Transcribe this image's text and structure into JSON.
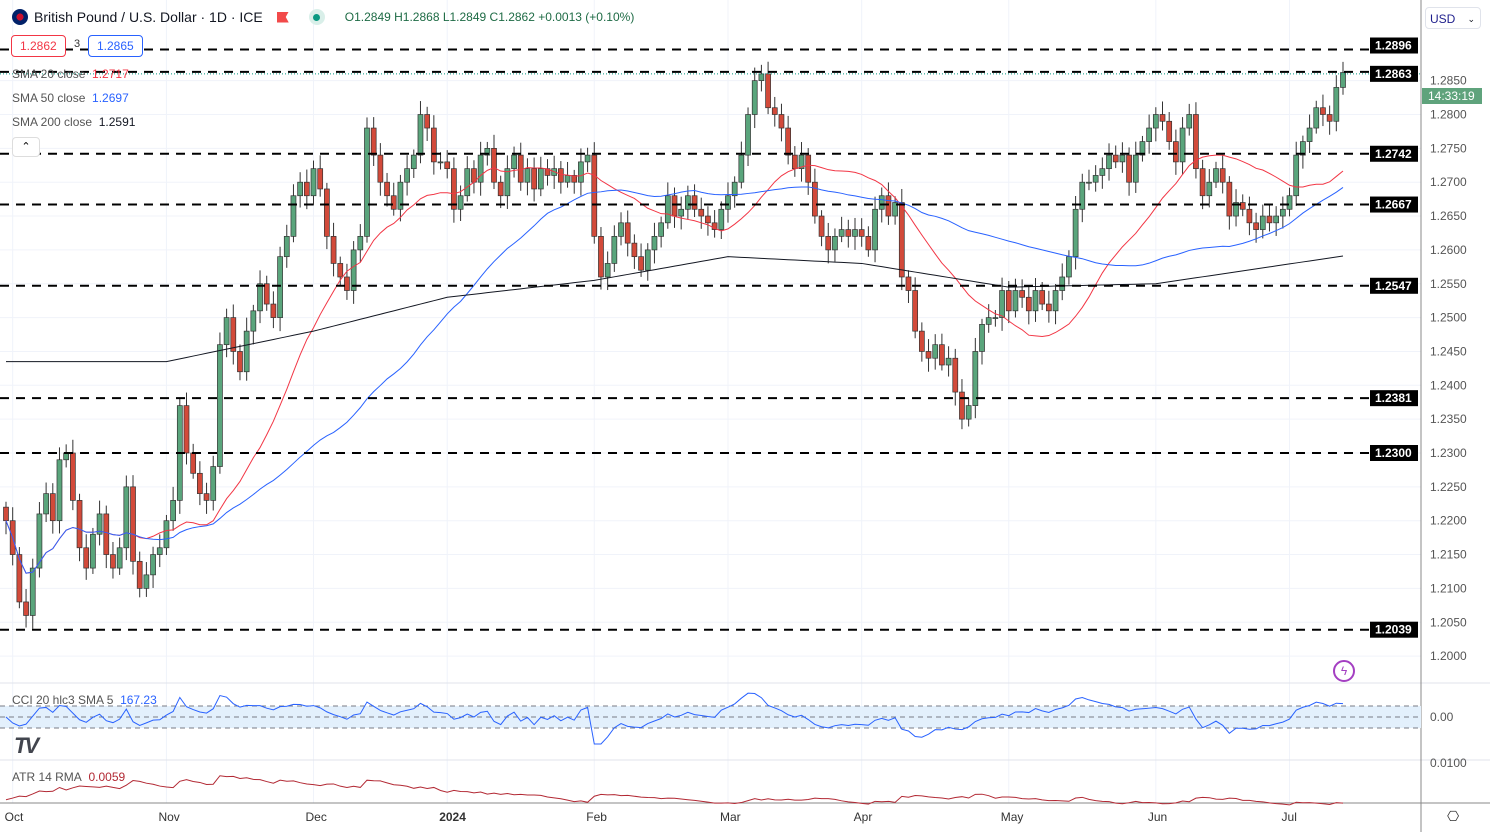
{
  "header": {
    "symbol_title": "British Pound / U.S. Dollar · 1D · ICE",
    "ohlc": "O1.2849 H1.2868 L1.2849 C1.2862 +0.0013 (+0.10%)",
    "sell_price": "1.2862",
    "spread": "3",
    "buy_price": "1.2865",
    "currency": "USD",
    "collapse_icon": "chevron-up-icon"
  },
  "indicators": {
    "sma20": {
      "label": "SMA 20 close",
      "value": "1.2717",
      "color": "#f23645"
    },
    "sma50": {
      "label": "SMA 50 close",
      "value": "1.2697",
      "color": "#2962ff"
    },
    "sma200": {
      "label": "SMA 200 close",
      "value": "1.2591",
      "color": "#131722"
    },
    "cci": {
      "label": "CCI 20 hlc3 SMA 5",
      "value": "167.23",
      "color": "#2962ff"
    },
    "atr": {
      "label": "ATR 14 RMA",
      "value": "0.0059",
      "color": "#b22833"
    }
  },
  "axis": {
    "price_ticks": [
      "1.2850",
      "1.2800",
      "1.2750",
      "1.2700",
      "1.2650",
      "1.2600",
      "1.2550",
      "1.2500",
      "1.2450",
      "1.2400",
      "1.2350",
      "1.2300",
      "1.2250",
      "1.2200",
      "1.2150",
      "1.2100",
      "1.2050",
      "1.2000"
    ],
    "cci_tick": "0.00",
    "atr_tick": "0.0100",
    "time_labels": [
      {
        "label": "Oct",
        "index": 1
      },
      {
        "label": "Nov",
        "index": 24
      },
      {
        "label": "Dec",
        "index": 46
      },
      {
        "label": "2024",
        "index": 66
      },
      {
        "label": "Feb",
        "index": 88
      },
      {
        "label": "Mar",
        "index": 108
      },
      {
        "label": "Apr",
        "index": 128
      },
      {
        "label": "May",
        "index": 150
      },
      {
        "label": "Jun",
        "index": 172
      },
      {
        "label": "Jul",
        "index": 192
      }
    ],
    "current_time": "14:33:19"
  },
  "levels": [
    "1.2896",
    "1.2863",
    "1.2742",
    "1.2667",
    "1.2547",
    "1.2381",
    "1.2300",
    "1.2039"
  ],
  "chart_data": {
    "type": "candlestick",
    "ylim": [
      1.196,
      1.292
    ],
    "closes": [
      1.22,
      1.215,
      1.208,
      1.206,
      1.213,
      1.221,
      1.224,
      1.22,
      1.229,
      1.23,
      1.223,
      1.216,
      1.213,
      1.218,
      1.221,
      1.215,
      1.213,
      1.216,
      1.225,
      1.214,
      1.21,
      1.212,
      1.215,
      1.216,
      1.22,
      1.223,
      1.237,
      1.23,
      1.227,
      1.224,
      1.223,
      1.228,
      1.246,
      1.25,
      1.245,
      1.242,
      1.248,
      1.251,
      1.255,
      1.252,
      1.25,
      1.259,
      1.262,
      1.268,
      1.27,
      1.268,
      1.272,
      1.269,
      1.262,
      1.258,
      1.256,
      1.254,
      1.26,
      1.262,
      1.278,
      1.274,
      1.27,
      1.268,
      1.266,
      1.27,
      1.272,
      1.274,
      1.28,
      1.278,
      1.273,
      1.273,
      1.272,
      1.266,
      1.268,
      1.272,
      1.27,
      1.274,
      1.275,
      1.27,
      1.268,
      1.272,
      1.274,
      1.27,
      1.272,
      1.269,
      1.272,
      1.271,
      1.272,
      1.27,
      1.271,
      1.27,
      1.273,
      1.274,
      1.262,
      1.256,
      1.258,
      1.262,
      1.264,
      1.261,
      1.259,
      1.257,
      1.26,
      1.262,
      1.264,
      1.268,
      1.265,
      1.266,
      1.268,
      1.266,
      1.265,
      1.264,
      1.263,
      1.266,
      1.268,
      1.27,
      1.274,
      1.28,
      1.285,
      1.286,
      1.281,
      1.28,
      1.278,
      1.274,
      1.272,
      1.274,
      1.27,
      1.265,
      1.262,
      1.26,
      1.262,
      1.263,
      1.262,
      1.263,
      1.262,
      1.26,
      1.266,
      1.268,
      1.265,
      1.267,
      1.256,
      1.254,
      1.248,
      1.245,
      1.244,
      1.246,
      1.243,
      1.244,
      1.239,
      1.235,
      1.237,
      1.245,
      1.249,
      1.25,
      1.25,
      1.254,
      1.251,
      1.254,
      1.253,
      1.251,
      1.254,
      1.252,
      1.251,
      1.254,
      1.256,
      1.259,
      1.266,
      1.27,
      1.27,
      1.271,
      1.272,
      1.274,
      1.273,
      1.274,
      1.27,
      1.274,
      1.276,
      1.278,
      1.28,
      1.279,
      1.276,
      1.273,
      1.278,
      1.28,
      1.272,
      1.268,
      1.27,
      1.272,
      1.27,
      1.265,
      1.267,
      1.266,
      1.264,
      1.263,
      1.265,
      1.264,
      1.265,
      1.266,
      1.268,
      1.274,
      1.276,
      1.278,
      1.281,
      1.28,
      1.279,
      1.284,
      1.2862
    ],
    "sma200_monthly": [
      1.2435,
      1.2435,
      1.248,
      1.253,
      1.2555,
      1.259,
      1.258,
      1.2545,
      1.255,
      1.2591
    ],
    "colors": {
      "up": "#5aa57c",
      "down": "#d24a3a",
      "level": "#000000",
      "grid": "#f0f3fa"
    }
  }
}
